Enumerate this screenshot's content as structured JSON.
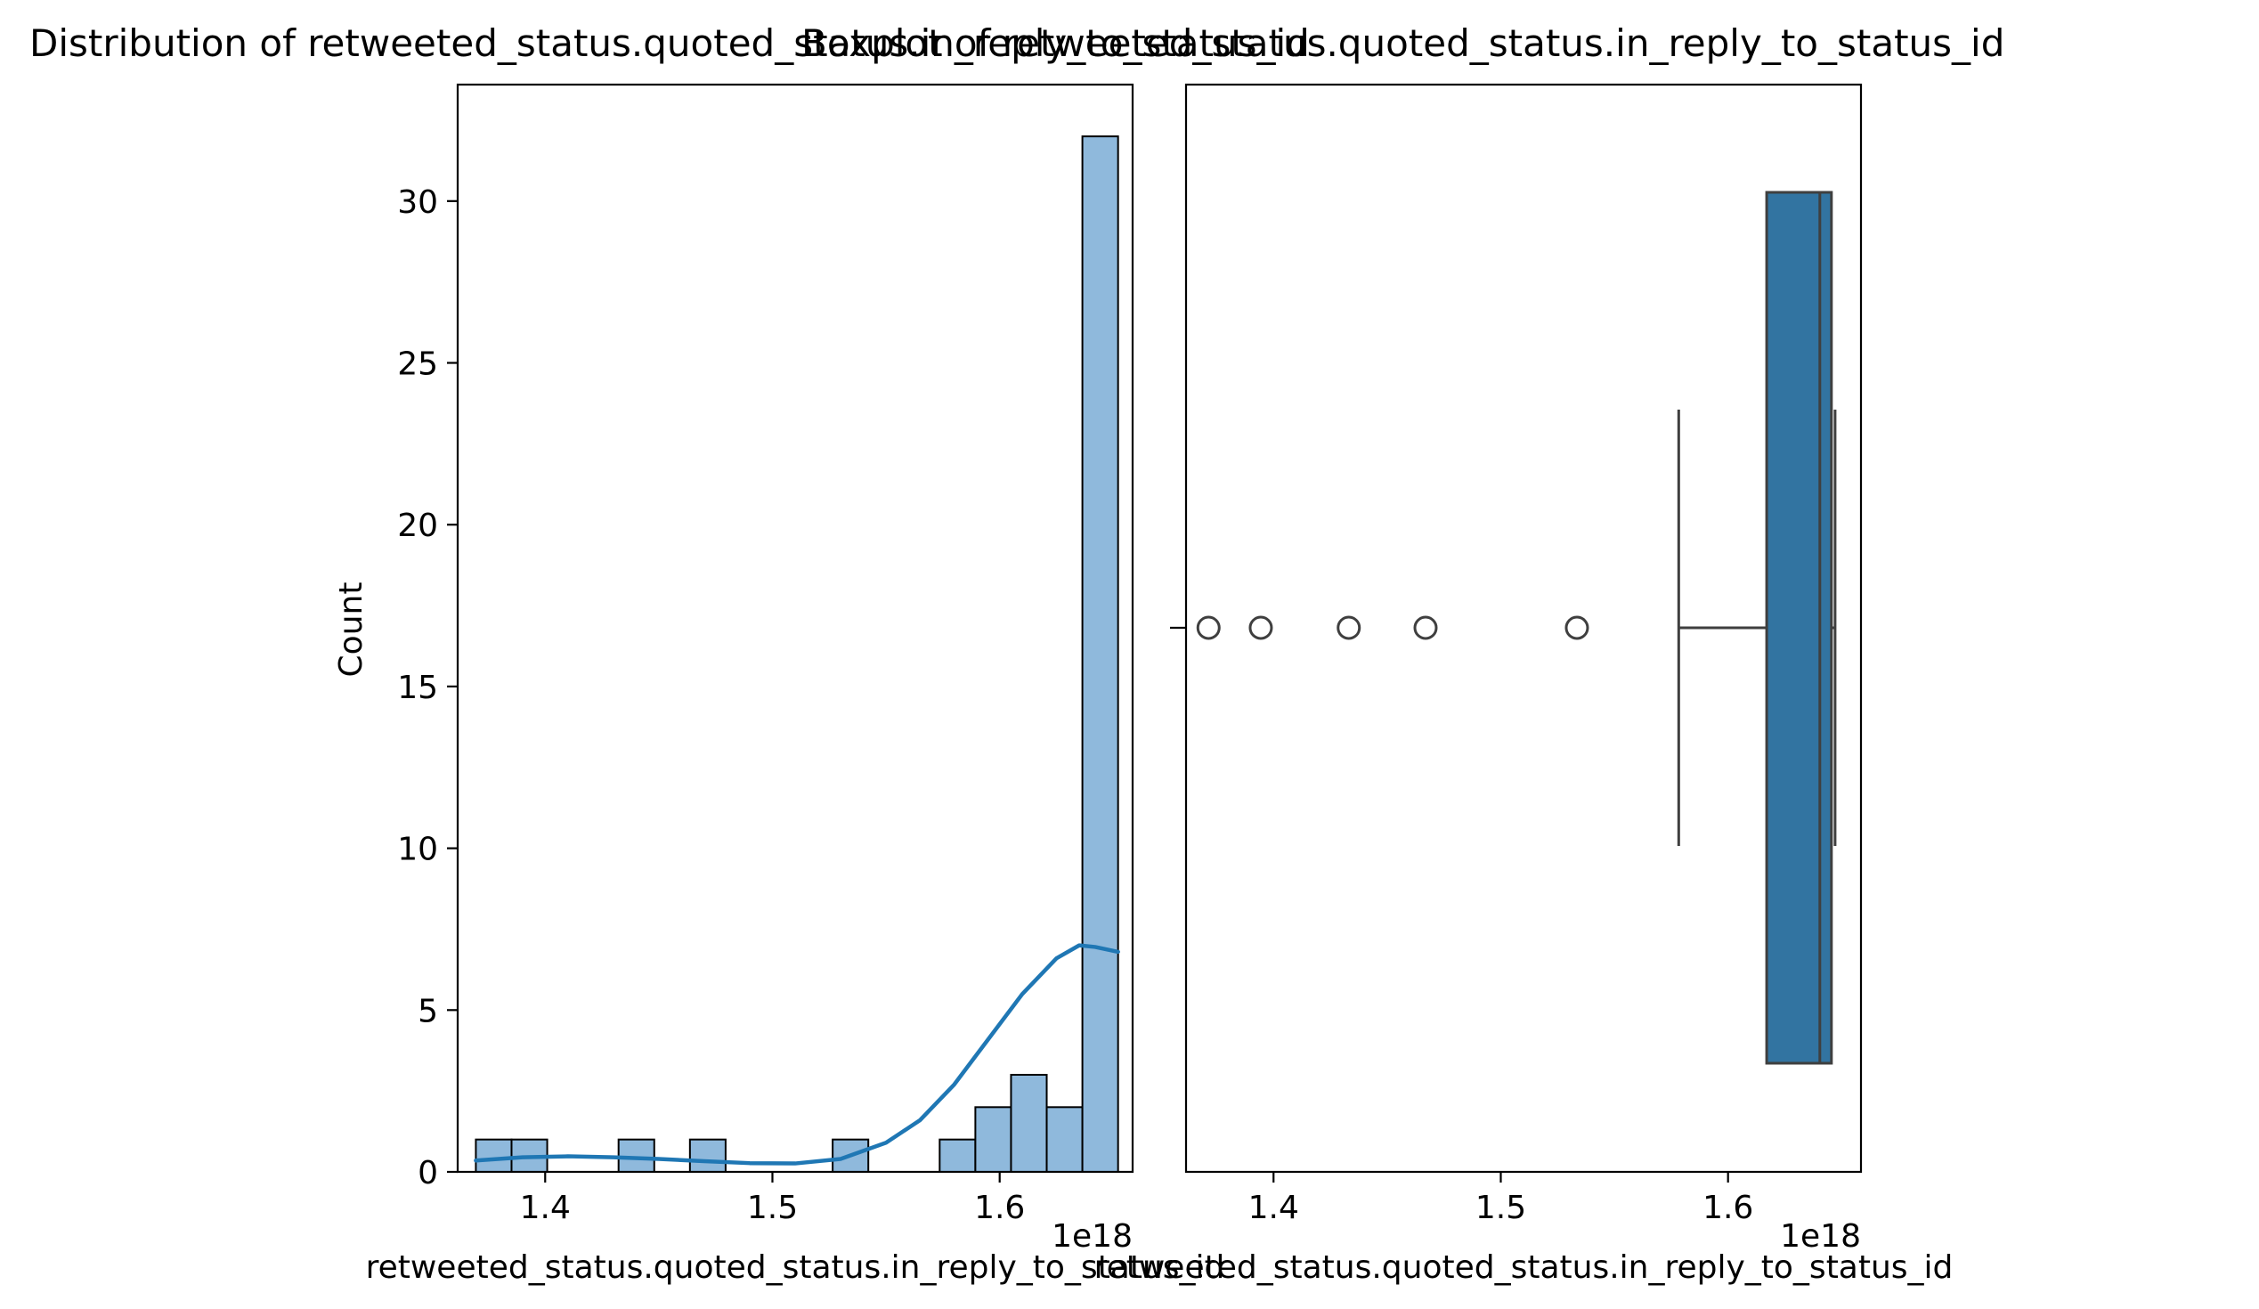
{
  "chart_data": [
    {
      "type": "histogram",
      "title": "Distribution of retweeted_status.quoted_status.in_reply_to_status_id",
      "xlabel": "retweeted_status.quoted_status.in_reply_to_status_id",
      "ylabel": "Count",
      "x_offset_label": "1e18",
      "x_scale_factor": 1e+18,
      "xlim": [
        1.3615,
        1.6585
      ],
      "ylim": [
        0,
        33.6
      ],
      "x_ticks": [
        1.4,
        1.5,
        1.6
      ],
      "x_tick_labels": [
        "1.4",
        "1.5",
        "1.6"
      ],
      "y_ticks": [
        0,
        5,
        10,
        15,
        20,
        25,
        30
      ],
      "y_tick_labels": [
        "0",
        "5",
        "10",
        "15",
        "20",
        "25",
        "30"
      ],
      "bar_color": "#8fb9dc",
      "bars": [
        {
          "x0": 1.3695,
          "x1": 1.3852,
          "count": 1
        },
        {
          "x0": 1.3852,
          "x1": 1.4009,
          "count": 1
        },
        {
          "x0": 1.4009,
          "x1": 1.4166,
          "count": 0
        },
        {
          "x0": 1.4166,
          "x1": 1.4323,
          "count": 0
        },
        {
          "x0": 1.4323,
          "x1": 1.448,
          "count": 1
        },
        {
          "x0": 1.448,
          "x1": 1.4637,
          "count": 0
        },
        {
          "x0": 1.4637,
          "x1": 1.4794,
          "count": 1
        },
        {
          "x0": 1.4794,
          "x1": 1.4951,
          "count": 0
        },
        {
          "x0": 1.4951,
          "x1": 1.5108,
          "count": 0
        },
        {
          "x0": 1.5108,
          "x1": 1.5265,
          "count": 0
        },
        {
          "x0": 1.5265,
          "x1": 1.5422,
          "count": 1
        },
        {
          "x0": 1.5422,
          "x1": 1.5579,
          "count": 0
        },
        {
          "x0": 1.5579,
          "x1": 1.5736,
          "count": 0
        },
        {
          "x0": 1.5736,
          "x1": 1.5893,
          "count": 1
        },
        {
          "x0": 1.5893,
          "x1": 1.605,
          "count": 2
        },
        {
          "x0": 1.605,
          "x1": 1.6207,
          "count": 3
        },
        {
          "x0": 1.6207,
          "x1": 1.6364,
          "count": 2
        },
        {
          "x0": 1.6364,
          "x1": 1.6521,
          "count": 32
        }
      ],
      "kde": {
        "color": "#1f77b4",
        "x": [
          1.3695,
          1.39,
          1.41,
          1.43,
          1.45,
          1.47,
          1.49,
          1.51,
          1.53,
          1.55,
          1.565,
          1.58,
          1.595,
          1.61,
          1.625,
          1.635,
          1.642,
          1.6521
        ],
        "y": [
          0.35,
          0.45,
          0.48,
          0.45,
          0.4,
          0.33,
          0.27,
          0.26,
          0.4,
          0.9,
          1.6,
          2.7,
          4.1,
          5.5,
          6.6,
          7.0,
          6.95,
          6.8
        ]
      }
    },
    {
      "type": "box",
      "title": "Boxplot of retweeted_status.quoted_status.in_reply_to_status_id",
      "xlabel": "retweeted_status.quoted_status.in_reply_to_status_id",
      "x_offset_label": "1e18",
      "x_scale_factor": 1e+18,
      "xlim": [
        1.3615,
        1.6585
      ],
      "x_ticks": [
        1.4,
        1.5,
        1.6
      ],
      "x_tick_labels": [
        "1.4",
        "1.5",
        "1.6"
      ],
      "box_color": "#3274a1",
      "q1": 1.617,
      "median": 1.6404,
      "q3": 1.6455,
      "whisker_low": 1.5783,
      "whisker_high": 1.6471,
      "outliers": [
        1.3714,
        1.3944,
        1.4331,
        1.4669,
        1.5335
      ]
    }
  ]
}
